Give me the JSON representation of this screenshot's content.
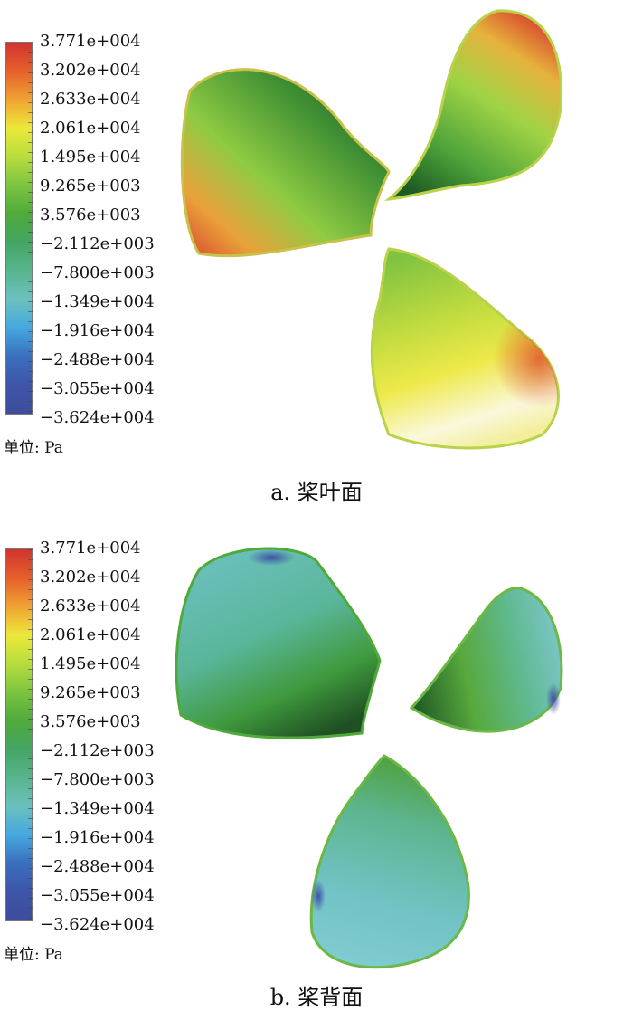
{
  "legend_labels": [
    "3.771e+004",
    "3.202e+004",
    "2.633e+004",
    "2.061e+004",
    "1.495e+004",
    "9.265e+003",
    "3.576e+003",
    "−2.112e+003",
    "−7.800e+003",
    "−1.349e+004",
    "−1.916e+004",
    "−2.488e+004",
    "−3.055e+004",
    "−3.624e+004"
  ],
  "unit_label": "单位: Pa",
  "panels": [
    {
      "caption": "a. 桨叶面"
    },
    {
      "caption": "b. 桨背面"
    }
  ],
  "colors": {
    "colorbar_stops": [
      "#d2332f",
      "#e5602b",
      "#f0a233",
      "#ece83a",
      "#b8dd3d",
      "#7cc440",
      "#4faa3a",
      "#44a563",
      "#58b58e",
      "#6cc0bf",
      "#45a8df",
      "#3a6fbe",
      "#3d55a8",
      "#3e4c9b"
    ],
    "pressure_dark_green": "#1e4f21",
    "pressure_light_yellow": "#fbf8dc"
  }
}
